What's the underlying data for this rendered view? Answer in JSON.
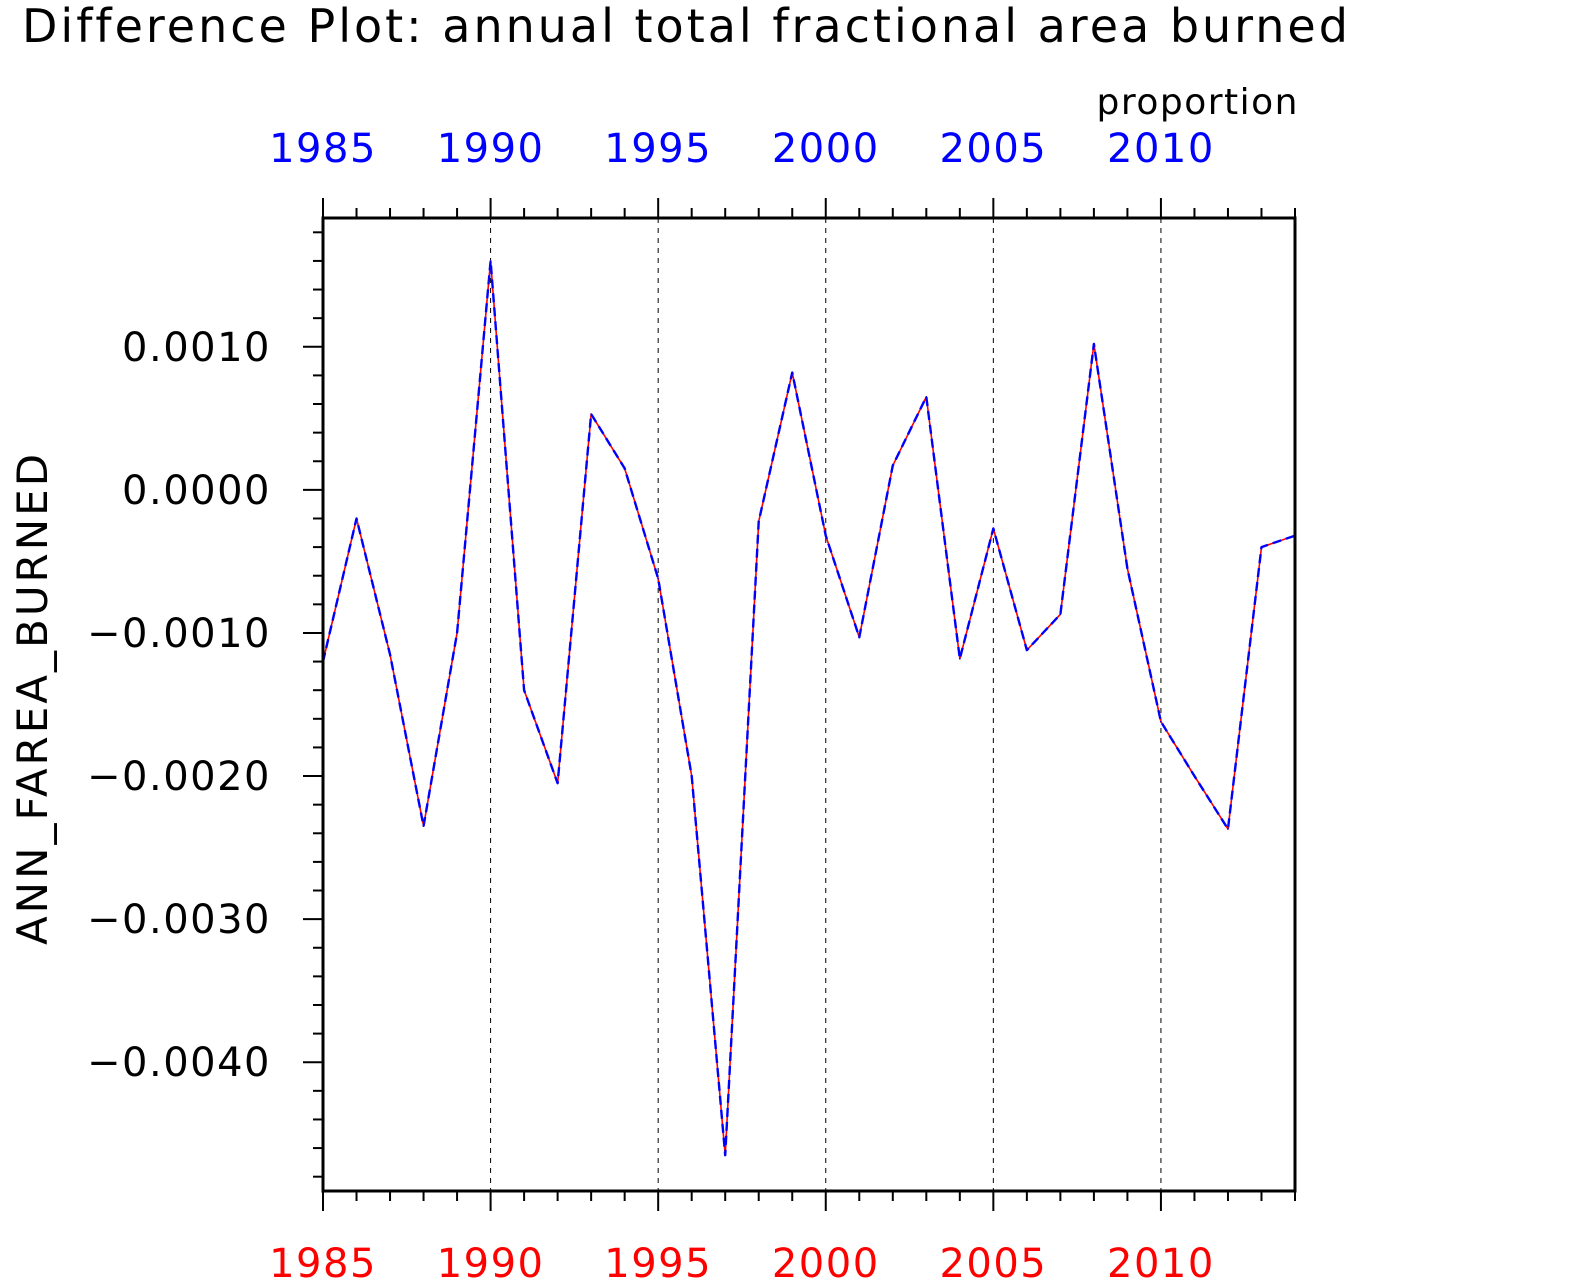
{
  "chart_data": {
    "type": "line",
    "title": "Difference Plot: annual total fractional area burned",
    "units": "proportion",
    "ylabel": "ANN_FAREA_BURNED",
    "xlabel": "",
    "xlim": [
      1985,
      2014
    ],
    "ylim": [
      -0.0049,
      0.0019
    ],
    "x_ticks": [
      1985,
      1990,
      1995,
      2000,
      2005,
      2010
    ],
    "x_tick_labels": [
      "1985",
      "1990",
      "1995",
      "2000",
      "2005",
      "2010"
    ],
    "y_ticks": [
      0.001,
      0.0,
      -0.001,
      -0.002,
      -0.003,
      -0.004
    ],
    "y_tick_labels": [
      "0.0010",
      "0.0000",
      "−0.0010",
      "−0.0020",
      "−0.0030",
      "−0.0040"
    ],
    "vertical_gridlines": "dashed at major x ticks",
    "series": [
      {
        "color": "#ff0000",
        "line_style": "solid",
        "x": [
          1985,
          1986,
          1987,
          1988,
          1989,
          1990,
          1991,
          1992,
          1993,
          1994,
          1995,
          1996,
          1997,
          1998,
          1999,
          2000,
          2001,
          2002,
          2003,
          2004,
          2005,
          2006,
          2007,
          2008,
          2009,
          2010,
          2011,
          2012,
          2013,
          2014
        ],
        "values": [
          -0.0012,
          -0.0002,
          -0.00115,
          -0.00235,
          -0.001,
          0.0016,
          -0.0014,
          -0.00205,
          0.00053,
          0.00015,
          -0.00062,
          -0.002,
          -0.00465,
          -0.00022,
          0.00082,
          -0.00032,
          -0.00103,
          0.00017,
          0.00065,
          -0.00118,
          -0.00027,
          -0.00112,
          -0.00087,
          0.00102,
          -0.00055,
          -0.00162,
          -0.002,
          -0.00237,
          -0.0004,
          -0.00032
        ]
      },
      {
        "color": "#0000ff",
        "line_style": "dashed",
        "x": [
          1985,
          1986,
          1987,
          1988,
          1989,
          1990,
          1991,
          1992,
          1993,
          1994,
          1995,
          1996,
          1997,
          1998,
          1999,
          2000,
          2001,
          2002,
          2003,
          2004,
          2005,
          2006,
          2007,
          2008,
          2009,
          2010,
          2011,
          2012,
          2013,
          2014
        ],
        "values": [
          -0.0012,
          -0.0002,
          -0.00115,
          -0.00235,
          -0.001,
          0.0016,
          -0.0014,
          -0.00205,
          0.00053,
          0.00015,
          -0.00062,
          -0.002,
          -0.00465,
          -0.00022,
          0.00082,
          -0.00032,
          -0.00103,
          0.00017,
          0.00065,
          -0.00118,
          -0.00027,
          -0.00112,
          -0.00087,
          0.00102,
          -0.00055,
          -0.00162,
          -0.002,
          -0.00237,
          -0.0004,
          -0.00032
        ]
      }
    ],
    "top_axis_label_color": "#0000ff",
    "bottom_axis_label_color": "#ff0000",
    "axis_color": "#000000",
    "grid_color": "#000000"
  }
}
